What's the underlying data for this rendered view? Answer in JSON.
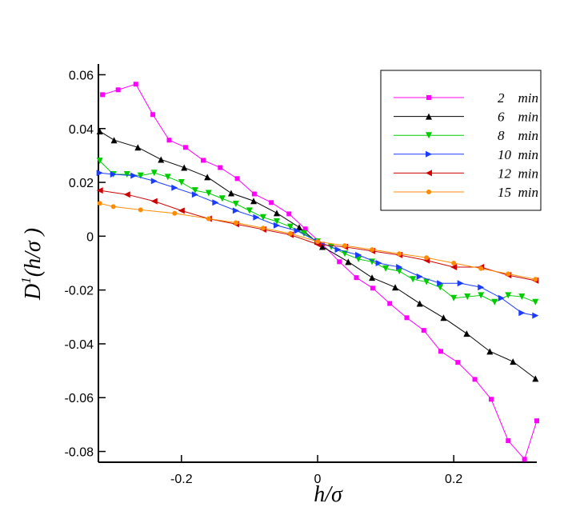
{
  "chart_data": {
    "type": "line",
    "xlabel": "h/σ",
    "ylabel": {
      "base": "D",
      "sup": "1",
      "rest": "(h/σ )"
    },
    "xlim": [
      -0.322,
      0.322
    ],
    "ylim": [
      -0.084,
      0.064
    ],
    "xticks": [
      -0.2,
      0,
      0.2
    ],
    "yticks": [
      -0.08,
      -0.06,
      -0.04,
      -0.02,
      0,
      0.02,
      0.04,
      0.06
    ],
    "legend": "upper right",
    "series": [
      {
        "name": "2    min",
        "color": "#ff00ff",
        "marker": "square",
        "x": [
          -0.316,
          -0.293,
          -0.267,
          -0.242,
          -0.218,
          -0.194,
          -0.168,
          -0.143,
          -0.118,
          -0.093,
          -0.068,
          -0.042,
          -0.018,
          0.007,
          0.032,
          0.057,
          0.081,
          0.106,
          0.131,
          0.156,
          0.181,
          0.206,
          0.231,
          0.255,
          0.28,
          0.304,
          0.322
        ],
        "values": [
          0.0526,
          0.0544,
          0.0565,
          0.0452,
          0.0357,
          0.033,
          0.0282,
          0.0255,
          0.0214,
          0.0157,
          0.0125,
          0.0083,
          0.0027,
          -0.003,
          -0.0095,
          -0.0154,
          -0.0193,
          -0.025,
          -0.0303,
          -0.035,
          -0.0428,
          -0.0469,
          -0.0532,
          -0.0606,
          -0.076,
          -0.0829,
          -0.0686
        ]
      },
      {
        "name": "6    min",
        "color": "#000000",
        "marker": "triangle-up",
        "x": [
          -0.32,
          -0.299,
          -0.264,
          -0.23,
          -0.196,
          -0.162,
          -0.127,
          -0.094,
          -0.06,
          -0.027,
          0.007,
          0.045,
          0.08,
          0.114,
          0.15,
          0.185,
          0.219,
          0.253,
          0.287,
          0.32
        ],
        "values": [
          0.039,
          0.0357,
          0.033,
          0.0285,
          0.0255,
          0.022,
          0.016,
          0.0131,
          0.0086,
          0.0033,
          -0.0039,
          -0.0095,
          -0.0154,
          -0.019,
          -0.025,
          -0.0303,
          -0.0362,
          -0.0428,
          -0.0466,
          -0.0529
        ]
      },
      {
        "name": "8    min",
        "color": "#00cc00",
        "marker": "triangle-down",
        "x": [
          -0.32,
          -0.3,
          -0.28,
          -0.26,
          -0.24,
          -0.22,
          -0.2,
          -0.18,
          -0.16,
          -0.14,
          -0.12,
          -0.1,
          -0.08,
          -0.06,
          -0.04,
          -0.02,
          0,
          0.02,
          0.04,
          0.06,
          0.08,
          0.1,
          0.12,
          0.14,
          0.16,
          0.18,
          0.2,
          0.22,
          0.24,
          0.26,
          0.28,
          0.3,
          0.32
        ],
        "values": [
          0.028,
          0.023,
          0.023,
          0.0225,
          0.0235,
          0.022,
          0.02,
          0.017,
          0.016,
          0.014,
          0.012,
          0.0095,
          0.007,
          0.0055,
          0.0035,
          0.001,
          -0.002,
          -0.004,
          -0.0065,
          -0.0085,
          -0.0095,
          -0.012,
          -0.013,
          -0.016,
          -0.017,
          -0.019,
          -0.023,
          -0.0225,
          -0.022,
          -0.0245,
          -0.022,
          -0.0225,
          -0.0245
        ]
      },
      {
        "name": "10  min",
        "color": "#1a3cff",
        "marker": "triangle-right",
        "x": [
          -0.32,
          -0.3,
          -0.27,
          -0.24,
          -0.21,
          -0.18,
          -0.15,
          -0.12,
          -0.09,
          -0.06,
          -0.03,
          0,
          0.03,
          0.06,
          0.09,
          0.12,
          0.15,
          0.18,
          0.21,
          0.24,
          0.27,
          0.3,
          0.32
        ],
        "values": [
          0.0235,
          0.023,
          0.0225,
          0.0205,
          0.018,
          0.0155,
          0.0125,
          0.0095,
          0.007,
          0.004,
          0.002,
          -0.002,
          -0.005,
          -0.007,
          -0.01,
          -0.0115,
          -0.015,
          -0.0175,
          -0.0175,
          -0.019,
          -0.023,
          -0.0285,
          -0.0295
        ]
      },
      {
        "name": "12  min",
        "color": "#cc0000",
        "marker": "triangle-left",
        "x": [
          -0.32,
          -0.28,
          -0.24,
          -0.2,
          -0.16,
          -0.12,
          -0.08,
          -0.04,
          0,
          0.04,
          0.08,
          0.12,
          0.16,
          0.2,
          0.24,
          0.28,
          0.32
        ],
        "values": [
          0.017,
          0.0155,
          0.013,
          0.0095,
          0.0065,
          0.0045,
          0.0025,
          0.0005,
          -0.003,
          -0.004,
          -0.0055,
          -0.007,
          -0.009,
          -0.0115,
          -0.0115,
          -0.0145,
          -0.0165
        ]
      },
      {
        "name": "15  min",
        "color": "#ff8c00",
        "marker": "circle",
        "x": [
          -0.32,
          -0.3,
          -0.26,
          -0.21,
          -0.16,
          -0.12,
          -0.08,
          -0.04,
          0,
          0.04,
          0.08,
          0.12,
          0.16,
          0.2,
          0.24,
          0.28,
          0.32
        ],
        "values": [
          0.0122,
          0.011,
          0.0098,
          0.0085,
          0.0065,
          0.005,
          0.003,
          0.001,
          -0.002,
          -0.0035,
          -0.005,
          -0.0065,
          -0.008,
          -0.01,
          -0.012,
          -0.014,
          -0.016
        ]
      }
    ]
  }
}
